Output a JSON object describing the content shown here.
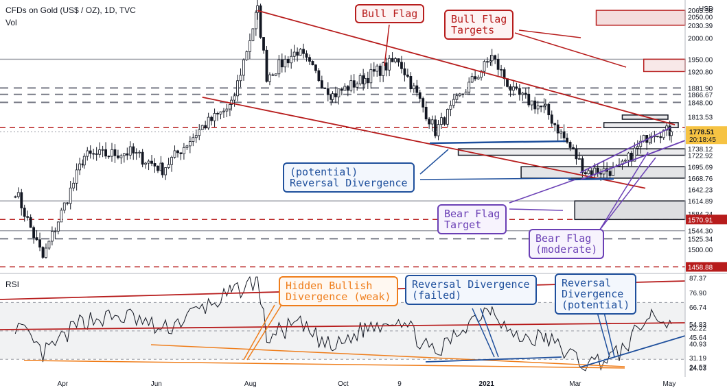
{
  "header": {
    "title": "CFDs on Gold (US$ / OZ), 1D, TVC",
    "volume_label": "Vol",
    "rsi_label": "RSI",
    "currency": "USD"
  },
  "annotations": {
    "bull_flag": "Bull Flag",
    "bull_flag_targets": "Bull Flag\nTargets",
    "potential_reversal_divergence": "(potential)\nReversal Divergence",
    "bear_flag_target": "Bear Flag\nTarget",
    "bear_flag_moderate": "Bear Flag\n(moderate)",
    "hidden_bullish_divergence": "Hidden Bullish\nDivergence (weak)",
    "reversal_divergence_failed": "Reversal Divergence\n(failed)",
    "reversal_divergence_potential": "Reversal\nDivergence\n(potential)"
  },
  "colors": {
    "red": "#b71c1c",
    "blue": "#1e4f9c",
    "purple": "#6a3fb5",
    "orange": "#ef7d1a",
    "current_price": "#f6c343",
    "candle": "#131722"
  },
  "chart_data": [
    {
      "type": "candlestick",
      "title": "CFDs on Gold (US$ / OZ), 1D, TVC",
      "ylabel": "USD",
      "ylim": [
        1445,
        2090
      ],
      "y_ticks": [
        2065.58,
        2050.0,
        2030.39,
        2000.0,
        1950.0,
        1920.8,
        1881.9,
        1866.67,
        1848.0,
        1813.53,
        1778.51,
        1738.12,
        1722.92,
        1695.69,
        1668.76,
        1642.23,
        1614.89,
        1584.24,
        1570.91,
        1544.3,
        1525.34,
        1500.0,
        1458.88
      ],
      "x_ticks": [
        "Apr",
        "Jun",
        "Aug",
        "Oct",
        "9",
        "2021",
        "Mar",
        "May"
      ],
      "current_price": 1778.51,
      "countdown": "20:18:45",
      "horizontal_levels_dashed_red": [
        1788.11,
        1570.91,
        1458.88
      ],
      "horizontal_levels_dashed_grey": [
        1881.9,
        1866.67,
        1848.0,
        1525.34
      ],
      "horizontal_levels_grey": [
        1950.0,
        1614.89,
        1544.3
      ],
      "series": [
        {
          "name": "",
          "x": [
            "2020-03-01",
            "2020-03-19",
            "2020-04-15",
            "2020-05-15",
            "2020-06-05",
            "2020-07-01",
            "2020-07-20",
            "2020-08-06",
            "2020-08-12",
            "2020-09-01",
            "2020-09-24",
            "2020-10-15",
            "2020-11-06",
            "2020-11-30",
            "2020-12-20",
            "2021-01-06",
            "2021-01-20",
            "2021-02-10",
            "2021-03-08",
            "2021-03-30",
            "2021-04-20",
            "2021-05-03"
          ],
          "close": [
            1640,
            1480,
            1720,
            1730,
            1690,
            1790,
            1840,
            2065,
            1910,
            1970,
            1865,
            1905,
            1950,
            1780,
            1880,
            1955,
            1870,
            1830,
            1685,
            1688,
            1780,
            1778.51
          ]
        }
      ]
    },
    {
      "type": "line",
      "title": "RSI",
      "ylim": [
        20,
        90
      ],
      "y_ticks": [
        87.37,
        76.9,
        66.74,
        54.83,
        52.22,
        45.64,
        40.93,
        31.19,
        24.57,
        24.03
      ],
      "series": [
        {
          "name": "",
          "x": [
            "2020-03-01",
            "2020-03-19",
            "2020-04-15",
            "2020-05-15",
            "2020-06-05",
            "2020-07-01",
            "2020-07-20",
            "2020-08-06",
            "2020-08-12",
            "2020-09-01",
            "2020-09-24",
            "2020-10-15",
            "2020-11-06",
            "2020-11-30",
            "2020-12-20",
            "2021-01-06",
            "2021-01-20",
            "2021-02-10",
            "2021-03-08",
            "2021-03-30",
            "2021-04-20",
            "2021-05-03"
          ],
          "values": [
            55,
            33,
            58,
            60,
            50,
            66,
            76,
            87,
            45,
            55,
            37,
            52,
            60,
            32,
            55,
            68,
            45,
            45,
            26,
            34,
            62,
            54.83
          ]
        }
      ]
    }
  ]
}
